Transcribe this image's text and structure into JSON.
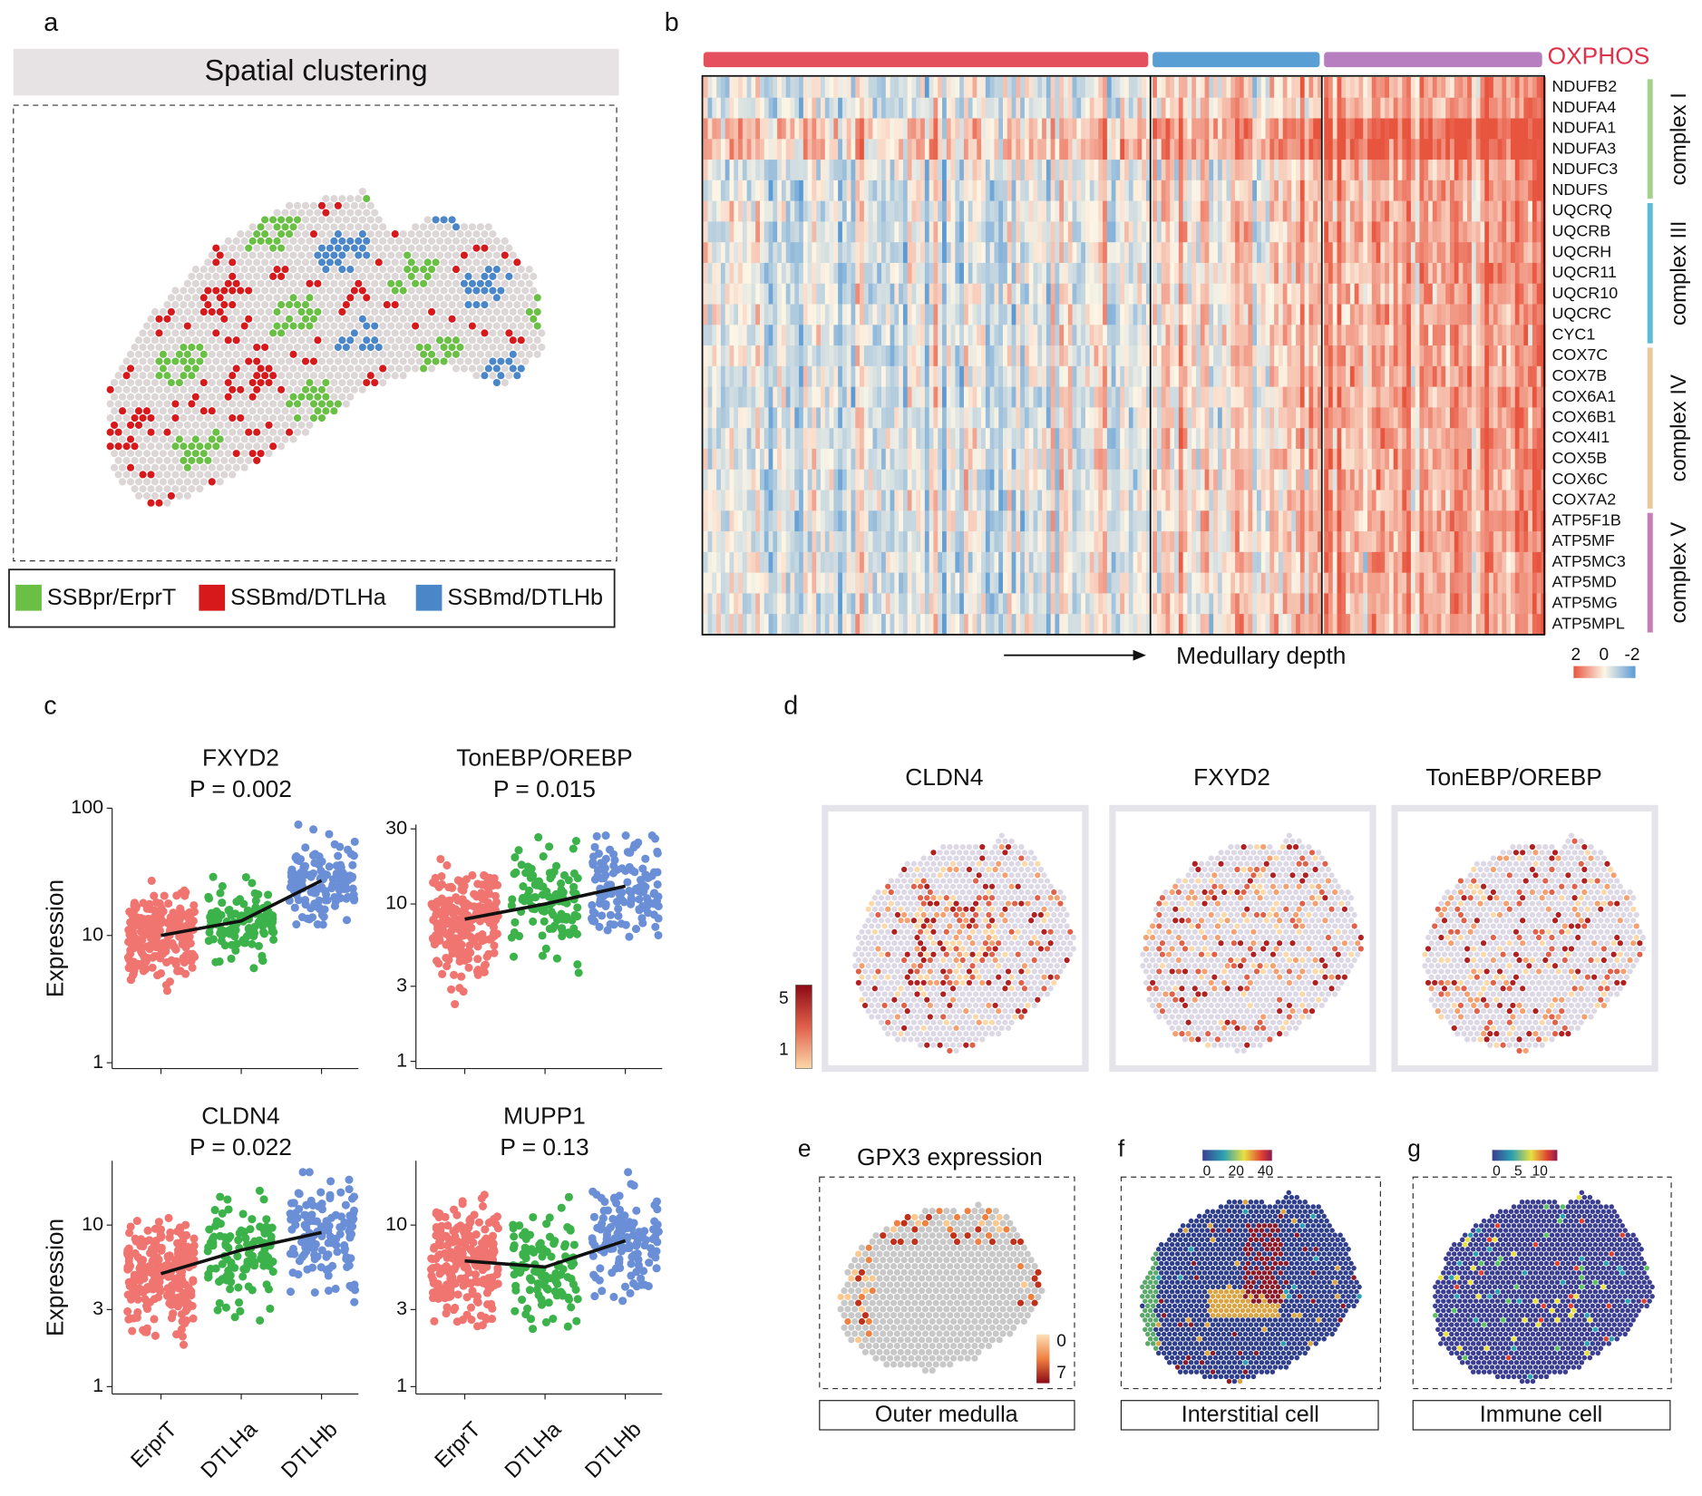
{
  "panel_a": {
    "letter": "a",
    "title": "Spatial clustering",
    "legend": [
      {
        "name": "SSBpr/ErprT",
        "color": "#6abf45"
      },
      {
        "name": "SSBmd/DTLHa",
        "color": "#d7191c"
      },
      {
        "name": "SSBmd/DTLHb",
        "color": "#4a86c8"
      }
    ]
  },
  "panel_b": {
    "letter": "b",
    "pathway": "OXPHOS",
    "group_colors": [
      "#e5505e",
      "#5a9fd4",
      "#b77fc0"
    ],
    "complexes": [
      {
        "name": "complex I",
        "color": "#a8d08d",
        "genes": [
          "NDUFB2",
          "NDUFA4",
          "NDUFA1",
          "NDUFA3",
          "NDUFC3",
          "NDUFS"
        ]
      },
      {
        "name": "complex III",
        "color": "#5bbcd6",
        "genes": [
          "UQCRQ",
          "UQCRB",
          "UQCRH",
          "UQCR11",
          "UQCR10",
          "UQCRC",
          "CYC1"
        ]
      },
      {
        "name": "complex IV",
        "color": "#e8c99a",
        "genes": [
          "COX7C",
          "COX7B",
          "COX6A1",
          "COX6B1",
          "COX4I1",
          "COX5B",
          "COX6C",
          "COX7A2"
        ]
      },
      {
        "name": "complex V",
        "color": "#c77db5",
        "genes": [
          "ATP5F1B",
          "ATP5MF",
          "ATP5MC3",
          "ATP5MD",
          "ATP5MG",
          "ATP5MPL"
        ]
      }
    ],
    "x_label": "Medullary depth",
    "colorbar_ticks": [
      2,
      0,
      -2
    ]
  },
  "panel_c": {
    "letter": "c",
    "colors": [
      "#f07470",
      "#3cb34a",
      "#6b8fd6"
    ],
    "charts": [
      {
        "title": "FXYD2",
        "p_label": "P = 0.002",
        "y_label": "Expression",
        "log": true,
        "ylim": [
          0.9,
          100
        ],
        "yticks": [
          1,
          10,
          100
        ],
        "trend": [
          10,
          13,
          27
        ]
      },
      {
        "title": "TonEBP/OREBP",
        "p_label": "P = 0.015",
        "log": true,
        "ylim": [
          0.9,
          32
        ],
        "yticks": [
          1,
          3,
          10,
          30
        ],
        "trend": [
          8,
          10,
          13
        ]
      },
      {
        "title": "CLDN4",
        "p_label": "P = 0.022",
        "y_label": "Expression",
        "log": true,
        "ylim": [
          0.9,
          25
        ],
        "yticks": [
          1,
          3,
          10
        ],
        "trend": [
          5,
          7,
          9
        ],
        "categories": [
          "ErprT",
          "DTLHa",
          "DTLHb"
        ]
      },
      {
        "title": "MUPP1",
        "p_label": "P = 0.13",
        "log": true,
        "ylim": [
          0.9,
          25
        ],
        "yticks": [
          1,
          3,
          10
        ],
        "trend": [
          6,
          5.5,
          8
        ],
        "categories": [
          "ErprT",
          "DTLHa",
          "DTLHb"
        ]
      }
    ]
  },
  "panel_d": {
    "letter": "d",
    "genes": [
      "CLDN4",
      "FXYD2",
      "TonEBP/OREBP"
    ],
    "colorbar_ticks": [
      5,
      1
    ]
  },
  "panel_e": {
    "letter": "e",
    "title": "GPX3 expression",
    "caption": "Outer medulla",
    "colorbar_ticks": [
      0,
      7
    ]
  },
  "panel_f": {
    "letter": "f",
    "caption": "Interstitial cell",
    "colorbar_ticks": [
      0,
      20,
      40
    ]
  },
  "panel_g": {
    "letter": "g",
    "caption": "Immune cell",
    "colorbar_ticks": [
      0,
      5,
      10
    ]
  }
}
